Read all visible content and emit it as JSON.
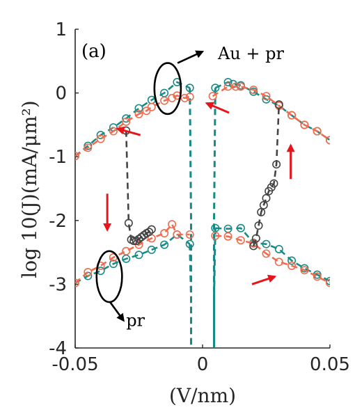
{
  "chart_data": {
    "type": "line",
    "panel_label": "(a)",
    "xlabel": "(V/nm)",
    "ylabel": "log 10(J)(mA/μm²)",
    "xlim": [
      -0.05,
      0.05
    ],
    "ylim": [
      -4,
      1
    ],
    "x_ticks": [
      -0.05,
      0,
      0.05
    ],
    "x_tick_labels": [
      "-0.05",
      "0",
      "0.05"
    ],
    "y_ticks": [
      -4,
      -3,
      -2,
      -1,
      0,
      1
    ],
    "y_tick_labels": [
      "-4",
      "-3",
      "-2",
      "-1",
      "0",
      "1"
    ],
    "colors": {
      "teal": "#178a86",
      "orange": "#ef6c4f",
      "gray": "#444444",
      "red": "#e8141b",
      "axis": "#262626"
    },
    "series": [
      {
        "color": "#178a86",
        "marker": "circle",
        "x": [
          -0.05,
          -0.045,
          -0.04,
          -0.035,
          -0.03,
          -0.025,
          -0.02,
          -0.015,
          -0.01,
          -0.005
        ],
        "y": [
          -0.99,
          -0.83,
          -0.66,
          -0.54,
          -0.4,
          -0.24,
          -0.11,
          0.0,
          0.17,
          0.08
        ]
      },
      {
        "color": "#178a86",
        "marker": "none",
        "x": [
          -0.005,
          -0.0045,
          -0.0045
        ],
        "y": [
          0.08,
          -2.0,
          -4.0
        ]
      },
      {
        "color": "#ef6c4f",
        "marker": "circle",
        "x": [
          -0.05,
          -0.045,
          -0.04,
          -0.035,
          -0.03,
          -0.025,
          -0.022,
          -0.02,
          -0.015,
          -0.012,
          -0.01,
          -0.007,
          -0.005
        ],
        "y": [
          -0.99,
          -0.86,
          -0.72,
          -0.6,
          -0.45,
          -0.33,
          -0.28,
          -0.22,
          -0.12,
          -0.08,
          -0.04,
          -0.08,
          -0.06
        ]
      },
      {
        "color": "#178a86",
        "marker": "circle",
        "x": [
          0.005,
          0.01,
          0.012,
          0.015,
          0.02,
          0.025,
          0.03,
          0.035,
          0.04,
          0.045,
          0.05
        ],
        "y": [
          0.08,
          0.17,
          0.14,
          0.12,
          0.02,
          -0.1,
          -0.2,
          -0.35,
          -0.5,
          -0.6,
          -0.74
        ]
      },
      {
        "color": "#178a86",
        "marker": "none",
        "x": [
          0.005,
          0.0045,
          0.0045
        ],
        "y": [
          0.08,
          -2.0,
          -4.0
        ]
      },
      {
        "color": "#ef6c4f",
        "marker": "circle",
        "x": [
          0.004,
          0.01,
          0.013,
          0.015,
          0.02,
          0.025,
          0.03,
          0.035,
          0.04,
          0.045,
          0.05
        ],
        "y": [
          -0.05,
          0.1,
          0.1,
          0.1,
          0.05,
          -0.05,
          -0.2,
          -0.35,
          -0.5,
          -0.6,
          -0.74
        ]
      },
      {
        "color": "#178a86",
        "marker": "circle",
        "x": [
          -0.05,
          -0.045,
          -0.04,
          -0.035,
          -0.03,
          -0.025,
          -0.02,
          -0.015,
          -0.01,
          -0.005
        ],
        "y": [
          -2.98,
          -2.87,
          -2.79,
          -2.68,
          -2.6,
          -2.54,
          -2.46,
          -2.38,
          -2.22,
          -2.37
        ]
      },
      {
        "color": "#178a86",
        "marker": "none",
        "x": [
          -0.005,
          -0.0045,
          -0.0045
        ],
        "y": [
          -2.37,
          -3.2,
          -4.0
        ]
      },
      {
        "color": "#ef6c4f",
        "marker": "circle",
        "x": [
          -0.05,
          -0.045,
          -0.04,
          -0.035,
          -0.03,
          -0.025,
          -0.02,
          -0.015,
          -0.012,
          -0.01,
          -0.005
        ],
        "y": [
          -2.98,
          -2.81,
          -2.71,
          -2.58,
          -2.48,
          -2.38,
          -2.28,
          -2.2,
          -2.06,
          -2.22,
          -2.22
        ]
      },
      {
        "color": "#178a86",
        "marker": "circle",
        "x": [
          0.005,
          0.01,
          0.015,
          0.02,
          0.025,
          0.03,
          0.035,
          0.04,
          0.045,
          0.05
        ],
        "y": [
          -2.12,
          -2.13,
          -2.12,
          -2.35,
          -2.37,
          -2.45,
          -2.63,
          -2.75,
          -2.85,
          -2.95
        ]
      },
      {
        "color": "#178a86",
        "marker": "none",
        "x": [
          0.005,
          0.0045,
          0.0045
        ],
        "y": [
          -2.12,
          -3.2,
          -4.0
        ]
      },
      {
        "color": "#ef6c4f",
        "marker": "circle",
        "x": [
          0.005,
          0.01,
          0.015,
          0.02,
          0.025,
          0.03,
          0.035,
          0.04,
          0.045,
          0.05
        ],
        "y": [
          -2.24,
          -2.25,
          -2.31,
          -2.36,
          -2.52,
          -2.65,
          -2.71,
          -2.78,
          -2.88,
          -2.98
        ]
      },
      {
        "color": "#444444",
        "marker": "circle",
        "x": [
          -0.03,
          -0.029,
          -0.028,
          -0.027,
          -0.026,
          -0.025,
          -0.024,
          -0.023,
          -0.022,
          -0.021,
          -0.02
        ],
        "y": [
          -0.59,
          -2.04,
          -2.3,
          -2.32,
          -2.32,
          -2.29,
          -2.26,
          -2.23,
          -2.2,
          -2.18,
          -2.14
        ]
      },
      {
        "color": "#444444",
        "marker": "circle",
        "x": [
          0.02,
          0.021,
          0.022,
          0.023,
          0.024,
          0.025,
          0.026,
          0.027,
          0.028,
          0.029,
          0.03
        ],
        "y": [
          -2.4,
          -2.28,
          -2.08,
          -1.87,
          -1.76,
          -1.65,
          -1.54,
          -1.48,
          -1.42,
          -1.12,
          -0.18
        ]
      }
    ],
    "annotations": [
      {
        "text": "Au + pr",
        "x": 0.006,
        "y": 0.62
      },
      {
        "text": "pr",
        "x": -0.03,
        "y": -3.57
      }
    ],
    "ellipses": [
      {
        "cx": -0.0137,
        "cy": 0.07,
        "rx": 0.0052,
        "ry": 0.4
      },
      {
        "cx": -0.0366,
        "cy": -2.88,
        "rx": 0.005,
        "ry": 0.4
      }
    ],
    "pointer_arrows": [
      {
        "from": [
          -0.0098,
          0.47
        ],
        "to": [
          0.0,
          0.65
        ]
      },
      {
        "from": [
          -0.0363,
          -3.28
        ],
        "to": [
          -0.031,
          -3.57
        ]
      }
    ],
    "red_arrows": [
      {
        "from": [
          -0.0244,
          -0.66
        ],
        "to": [
          -0.0334,
          -0.56
        ]
      },
      {
        "from": [
          -0.0374,
          -1.58
        ],
        "to": [
          -0.0374,
          -2.15
        ]
      },
      {
        "from": [
          0.0104,
          -0.31
        ],
        "to": [
          0.0016,
          -0.16
        ]
      },
      {
        "from": [
          0.0346,
          -1.35
        ],
        "to": [
          0.0346,
          -0.82
        ]
      },
      {
        "from": [
          0.0194,
          -3.0
        ],
        "to": [
          0.0284,
          -2.88
        ]
      }
    ]
  }
}
